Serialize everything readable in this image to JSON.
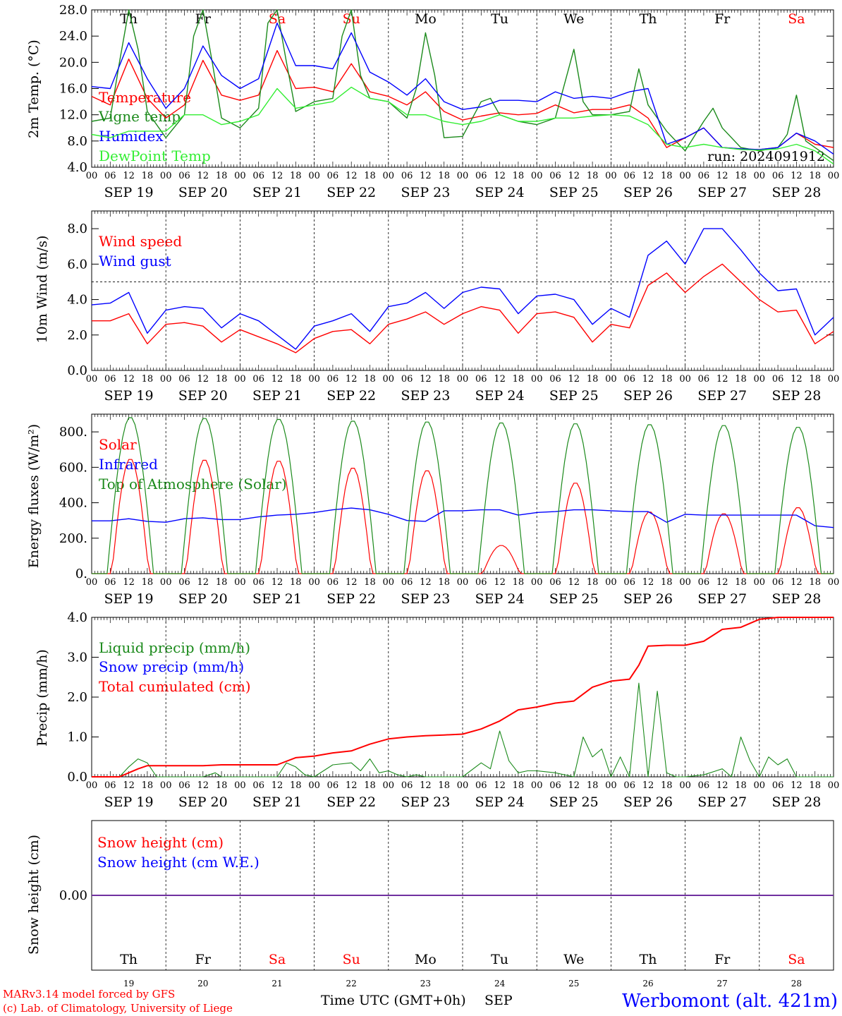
{
  "footer": {
    "credit_line1": "MARv3.14 model forced by GFS",
    "credit_line2": "(c) Lab. of Climatology, University of Liege",
    "axis_title": "Time UTC (GMT+0h)",
    "month": "SEP",
    "station": "Werbomont (alt. 421m)"
  },
  "colors": {
    "red": "#ff0000",
    "dark_green": "#1b8a1b",
    "blue": "#0000ff",
    "light_green": "#33ee33",
    "purple": "#7030a0"
  },
  "days": {
    "weekdays": [
      "Th",
      "Fr",
      "Sa",
      "Su",
      "Mo",
      "Tu",
      "We",
      "Th",
      "Fr",
      "Sa"
    ],
    "weekend": [
      false,
      false,
      true,
      true,
      false,
      false,
      false,
      false,
      false,
      true
    ],
    "dates": [
      "SEP 19",
      "SEP 20",
      "SEP 21",
      "SEP 22",
      "SEP 23",
      "SEP 24",
      "SEP 25",
      "SEP 26",
      "SEP 27",
      "SEP 28"
    ],
    "day_numbers": [
      "19",
      "20",
      "21",
      "22",
      "23",
      "24",
      "25",
      "26",
      "27",
      "28"
    ],
    "hours": [
      "00",
      "06",
      "12",
      "18"
    ],
    "end_hour": "00"
  },
  "chart_data": [
    {
      "type": "line",
      "ylabel": "2m Temp. (°C)",
      "ylim": [
        4.0,
        28.0
      ],
      "yticks": [
        "4.0",
        "8.0",
        "12.0",
        "16.0",
        "20.0",
        "24.0",
        "28.0"
      ],
      "annotation": "run: 2024091912",
      "x_unit": "hours since SEP 19 00 UTC",
      "series": [
        {
          "name": "Temperature",
          "color": "red",
          "x": [
            0,
            6,
            12,
            18,
            24,
            30,
            36,
            42,
            48,
            54,
            60,
            66,
            72,
            78,
            84,
            90,
            96,
            102,
            108,
            114,
            120,
            126,
            132,
            138,
            144,
            150,
            156,
            162,
            168,
            174,
            180,
            186,
            192,
            198,
            204,
            210,
            216,
            222,
            228,
            234,
            240
          ],
          "values": [
            14.8,
            13.5,
            20.5,
            14.5,
            11.5,
            13.5,
            20.3,
            15.0,
            14.2,
            15.0,
            21.8,
            16.0,
            16.2,
            15.5,
            19.8,
            15.5,
            14.8,
            13.5,
            15.5,
            12.5,
            11.2,
            11.8,
            12.3,
            12.0,
            12.2,
            13.5,
            12.3,
            12.8,
            12.8,
            13.5,
            11.5,
            7.0,
            8.5,
            10.0,
            7.0,
            6.8,
            6.7,
            7.0,
            9.2,
            7.5,
            7.0
          ]
        },
        {
          "name": "Vigne temp",
          "color": "dark_green",
          "x": [
            0,
            6,
            9,
            12,
            15,
            18,
            24,
            30,
            33,
            36,
            39,
            42,
            48,
            54,
            57,
            60,
            63,
            66,
            72,
            78,
            81,
            84,
            87,
            90,
            96,
            102,
            105,
            108,
            111,
            114,
            120,
            126,
            129,
            132,
            138,
            144,
            150,
            156,
            159,
            162,
            168,
            174,
            177,
            180,
            186,
            192,
            198,
            201,
            204,
            210,
            216,
            222,
            225,
            228,
            231,
            234,
            240
          ],
          "values": [
            11.0,
            11.5,
            20.0,
            28.0,
            22.0,
            12.5,
            8.5,
            12.0,
            24.0,
            28.0,
            20.0,
            11.5,
            10.0,
            13.0,
            26.0,
            28.0,
            20.0,
            12.5,
            14.0,
            14.5,
            24.0,
            28.0,
            18.0,
            14.5,
            14.0,
            11.5,
            16.0,
            24.5,
            18.0,
            8.5,
            8.7,
            14.0,
            14.5,
            12.0,
            11.0,
            10.5,
            11.5,
            22.0,
            14.0,
            12.0,
            12.0,
            12.5,
            19.0,
            13.5,
            9.5,
            6.5,
            11.0,
            13.0,
            10.0,
            7.0,
            6.5,
            7.0,
            9.0,
            15.0,
            8.0,
            7.0,
            5.0
          ]
        },
        {
          "name": "Humidex",
          "color": "blue",
          "x": [
            0,
            6,
            12,
            18,
            24,
            30,
            36,
            42,
            48,
            54,
            60,
            66,
            72,
            78,
            84,
            90,
            96,
            102,
            108,
            114,
            120,
            126,
            132,
            138,
            144,
            150,
            156,
            162,
            168,
            174,
            180,
            186,
            192,
            198,
            204,
            210,
            216,
            222,
            228,
            234,
            240
          ],
          "values": [
            16.3,
            16.0,
            23.0,
            17.5,
            13.0,
            16.0,
            22.5,
            18.0,
            16.0,
            17.5,
            26.0,
            19.5,
            19.5,
            19.0,
            24.5,
            18.5,
            17.0,
            15.0,
            17.5,
            14.0,
            12.8,
            13.2,
            14.2,
            14.2,
            14.0,
            15.5,
            14.5,
            14.8,
            14.5,
            15.5,
            16.0,
            7.5,
            8.5,
            10.0,
            7.0,
            6.8,
            6.7,
            7.0,
            9.2,
            8.0,
            6.0
          ]
        },
        {
          "name": "DewPoint Temp",
          "color": "light_green",
          "x": [
            0,
            6,
            12,
            18,
            24,
            30,
            36,
            42,
            48,
            54,
            60,
            66,
            72,
            78,
            84,
            90,
            96,
            102,
            108,
            114,
            120,
            126,
            132,
            138,
            144,
            150,
            156,
            162,
            168,
            174,
            180,
            186,
            192,
            198,
            204,
            210,
            216,
            222,
            228,
            234,
            240
          ],
          "values": [
            9.0,
            8.5,
            9.5,
            9.5,
            9.5,
            12.0,
            12.0,
            10.5,
            11.0,
            12.0,
            16.0,
            13.0,
            13.5,
            14.0,
            16.2,
            14.5,
            14.0,
            12.0,
            12.0,
            11.0,
            10.5,
            11.0,
            12.0,
            11.0,
            11.0,
            11.5,
            11.5,
            11.8,
            12.0,
            11.8,
            10.5,
            7.5,
            7.0,
            7.5,
            7.0,
            6.7,
            6.6,
            6.8,
            7.5,
            6.5,
            4.5
          ]
        }
      ]
    },
    {
      "type": "line",
      "ylabel": "10m Wind (m/s)",
      "ylim": [
        0.0,
        9.0
      ],
      "yticks": [
        "0.0",
        "2.0",
        "4.0",
        "6.0",
        "8.0"
      ],
      "reference_line": 5.0,
      "x_unit": "hours since SEP 19 00 UTC",
      "series": [
        {
          "name": "Wind speed",
          "color": "red",
          "x": [
            0,
            6,
            12,
            18,
            24,
            30,
            36,
            42,
            48,
            54,
            60,
            66,
            72,
            78,
            84,
            90,
            96,
            102,
            108,
            114,
            120,
            126,
            132,
            138,
            144,
            150,
            156,
            162,
            168,
            174,
            180,
            186,
            192,
            198,
            204,
            210,
            216,
            222,
            228,
            234,
            240
          ],
          "values": [
            2.8,
            2.8,
            3.2,
            1.5,
            2.6,
            2.7,
            2.5,
            1.6,
            2.3,
            1.9,
            1.5,
            1.0,
            1.8,
            2.2,
            2.3,
            1.5,
            2.6,
            2.9,
            3.3,
            2.6,
            3.2,
            3.6,
            3.4,
            2.1,
            3.2,
            3.3,
            3.0,
            1.6,
            2.6,
            2.4,
            4.8,
            5.5,
            4.4,
            5.3,
            6.0,
            5.0,
            4.0,
            3.3,
            3.4,
            1.5,
            2.2
          ]
        },
        {
          "name": "Wind gust",
          "color": "blue",
          "x": [
            0,
            6,
            12,
            18,
            24,
            30,
            36,
            42,
            48,
            54,
            60,
            66,
            72,
            78,
            84,
            90,
            96,
            102,
            108,
            114,
            120,
            126,
            132,
            138,
            144,
            150,
            156,
            162,
            168,
            174,
            180,
            186,
            192,
            198,
            204,
            210,
            216,
            222,
            228,
            234,
            240
          ],
          "values": [
            3.7,
            3.8,
            4.4,
            2.1,
            3.4,
            3.6,
            3.5,
            2.4,
            3.2,
            2.8,
            2.0,
            1.2,
            2.5,
            2.8,
            3.2,
            2.2,
            3.6,
            3.8,
            4.4,
            3.5,
            4.4,
            4.7,
            4.6,
            3.2,
            4.2,
            4.3,
            4.0,
            2.6,
            3.5,
            3.0,
            6.5,
            7.3,
            6.0,
            8.0,
            8.0,
            6.8,
            5.5,
            4.5,
            4.6,
            2.0,
            3.0
          ]
        }
      ]
    },
    {
      "type": "line",
      "ylabel": "Energy fluxes (W/m²)",
      "ylim": [
        0,
        900
      ],
      "yticks": [
        "0.",
        "200.",
        "400.",
        "600.",
        "800."
      ],
      "x_unit": "hours since SEP 19 00 UTC",
      "series": [
        {
          "name": "Solar",
          "color": "red",
          "peaks": [
            650,
            645,
            640,
            600,
            585,
            160,
            515,
            350,
            340,
            375
          ]
        },
        {
          "name": "Infrared",
          "color": "blue",
          "x": [
            0,
            6,
            12,
            18,
            24,
            30,
            36,
            42,
            48,
            54,
            60,
            66,
            72,
            78,
            84,
            90,
            96,
            102,
            108,
            114,
            120,
            126,
            132,
            138,
            144,
            150,
            156,
            162,
            168,
            174,
            180,
            186,
            192,
            198,
            204,
            210,
            216,
            222,
            228,
            234,
            240
          ],
          "values": [
            298,
            298,
            310,
            295,
            290,
            310,
            315,
            305,
            305,
            320,
            330,
            335,
            345,
            360,
            370,
            360,
            335,
            300,
            295,
            355,
            355,
            360,
            360,
            330,
            345,
            350,
            360,
            360,
            355,
            350,
            350,
            290,
            335,
            330,
            330,
            330,
            330,
            330,
            330,
            270,
            260
          ]
        },
        {
          "name": "Top of Atmosphere (Solar)",
          "color": "dark_green",
          "peaks": [
            885,
            880,
            875,
            865,
            860,
            855,
            850,
            845,
            840,
            830
          ]
        }
      ]
    },
    {
      "type": "line",
      "ylabel": "Precip (mm/h)",
      "ylim": [
        0.0,
        4.0
      ],
      "yticks": [
        "0.0",
        "1.0",
        "2.0",
        "3.0",
        "4.0"
      ],
      "x_unit": "hours since SEP 19 00 UTC",
      "series": [
        {
          "name": "Liquid precip (mm/h)",
          "color": "dark_green",
          "x": [
            0,
            9,
            12,
            15,
            18,
            21,
            24,
            36,
            40,
            42,
            48,
            60,
            63,
            66,
            69,
            72,
            78,
            84,
            87,
            90,
            93,
            96,
            99,
            102,
            105,
            108,
            114,
            120,
            126,
            129,
            132,
            135,
            138,
            141,
            144,
            150,
            156,
            159,
            162,
            165,
            168,
            171,
            174,
            177,
            180,
            183,
            186,
            189,
            192,
            198,
            204,
            207,
            210,
            213,
            216,
            219,
            222,
            225,
            228,
            234,
            240
          ],
          "values": [
            0,
            0,
            0.25,
            0.45,
            0.35,
            0,
            0,
            0,
            0.1,
            0,
            0,
            0,
            0.35,
            0.25,
            0.05,
            0,
            0.3,
            0.35,
            0.15,
            0.45,
            0.1,
            0.15,
            0.05,
            0,
            0.05,
            0,
            0,
            0,
            0.35,
            0.2,
            1.15,
            0.4,
            0.1,
            0.15,
            0.15,
            0.1,
            0,
            1.0,
            0.5,
            0.7,
            0,
            0.5,
            0,
            2.35,
            0,
            2.15,
            0.1,
            0,
            0,
            0.05,
            0.2,
            0,
            1.0,
            0.4,
            0,
            0.5,
            0.3,
            0.45,
            0,
            0,
            0
          ]
        },
        {
          "name": "Snow precip (mm/h)",
          "color": "blue",
          "values": []
        },
        {
          "name": "Total cumulated (cm)",
          "color": "red",
          "x": [
            0,
            9,
            12,
            15,
            18,
            24,
            36,
            42,
            48,
            60,
            66,
            72,
            78,
            84,
            90,
            96,
            102,
            108,
            114,
            120,
            126,
            132,
            138,
            144,
            150,
            156,
            162,
            168,
            174,
            177,
            180,
            186,
            192,
            198,
            204,
            210,
            216,
            222,
            228,
            234,
            240
          ],
          "values": [
            0,
            0,
            0.1,
            0.2,
            0.28,
            0.28,
            0.28,
            0.3,
            0.3,
            0.3,
            0.48,
            0.52,
            0.6,
            0.65,
            0.82,
            0.95,
            1.0,
            1.03,
            1.05,
            1.07,
            1.2,
            1.4,
            1.68,
            1.75,
            1.85,
            1.9,
            2.25,
            2.4,
            2.45,
            2.8,
            3.28,
            3.3,
            3.3,
            3.4,
            3.7,
            3.75,
            3.95,
            4.0,
            4.0,
            4.0,
            4.0
          ]
        }
      ]
    },
    {
      "type": "line",
      "ylabel": "Snow height (cm)",
      "yticks": [
        "0.00"
      ],
      "x_unit": "hours since SEP 19 00 UTC",
      "series": [
        {
          "name": "Snow height (cm)",
          "color": "red",
          "x": [
            0,
            240
          ],
          "values": [
            0,
            0
          ]
        },
        {
          "name": "Snow height (cm W.E.)",
          "color": "blue",
          "x": [
            0,
            240
          ],
          "values": [
            0,
            0
          ]
        }
      ]
    }
  ]
}
